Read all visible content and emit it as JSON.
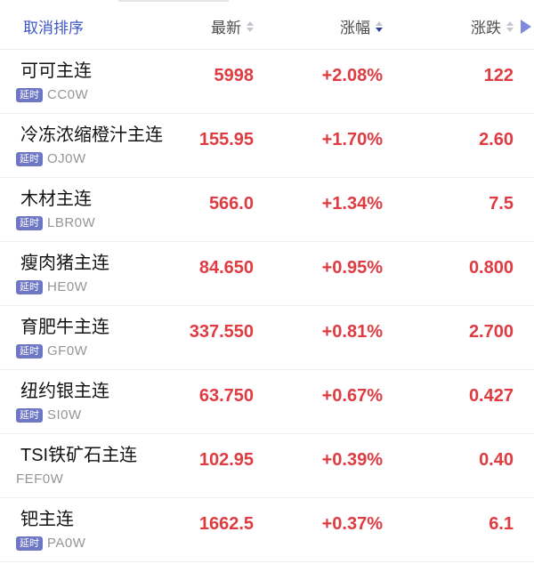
{
  "header": {
    "cancel_sort_label": "取消排序",
    "columns": [
      {
        "label": "最新",
        "sort": "none"
      },
      {
        "label": "涨幅",
        "sort": "desc"
      },
      {
        "label": "涨跌",
        "sort": "none"
      }
    ],
    "expand_icon": "play-triangle-right"
  },
  "colors": {
    "up_red": "#df3b41",
    "link_blue": "#3d56c4",
    "badge_bg": "#6d77c3",
    "sort_active": "#32418f",
    "sort_inactive": "#c3c6cf",
    "play_icon": "#7d89dc",
    "code_gray": "#959595",
    "divider": "#efefef"
  },
  "rows": [
    {
      "name": "可可主连",
      "badge": "延时",
      "code": "CC0W",
      "last": "5998",
      "change_pct": "+2.08%",
      "change": "122"
    },
    {
      "name": "冷冻浓缩橙汁主连",
      "badge": "延时",
      "code": "OJ0W",
      "last": "155.95",
      "change_pct": "+1.70%",
      "change": "2.60"
    },
    {
      "name": "木材主连",
      "badge": "延时",
      "code": "LBR0W",
      "last": "566.0",
      "change_pct": "+1.34%",
      "change": "7.5"
    },
    {
      "name": "瘦肉猪主连",
      "badge": "延时",
      "code": "HE0W",
      "last": "84.650",
      "change_pct": "+0.95%",
      "change": "0.800"
    },
    {
      "name": "育肥牛主连",
      "badge": "延时",
      "code": "GF0W",
      "last": "337.550",
      "change_pct": "+0.81%",
      "change": "2.700"
    },
    {
      "name": "纽约银主连",
      "badge": "延时",
      "code": "SI0W",
      "last": "63.750",
      "change_pct": "+0.67%",
      "change": "0.427"
    },
    {
      "name": "TSI铁矿石主连",
      "badge": "",
      "code": "FEF0W",
      "last": "102.95",
      "change_pct": "+0.39%",
      "change": "0.40"
    },
    {
      "name": "钯主连",
      "badge": "延时",
      "code": "PA0W",
      "last": "1662.5",
      "change_pct": "+0.37%",
      "change": "6.1"
    }
  ]
}
